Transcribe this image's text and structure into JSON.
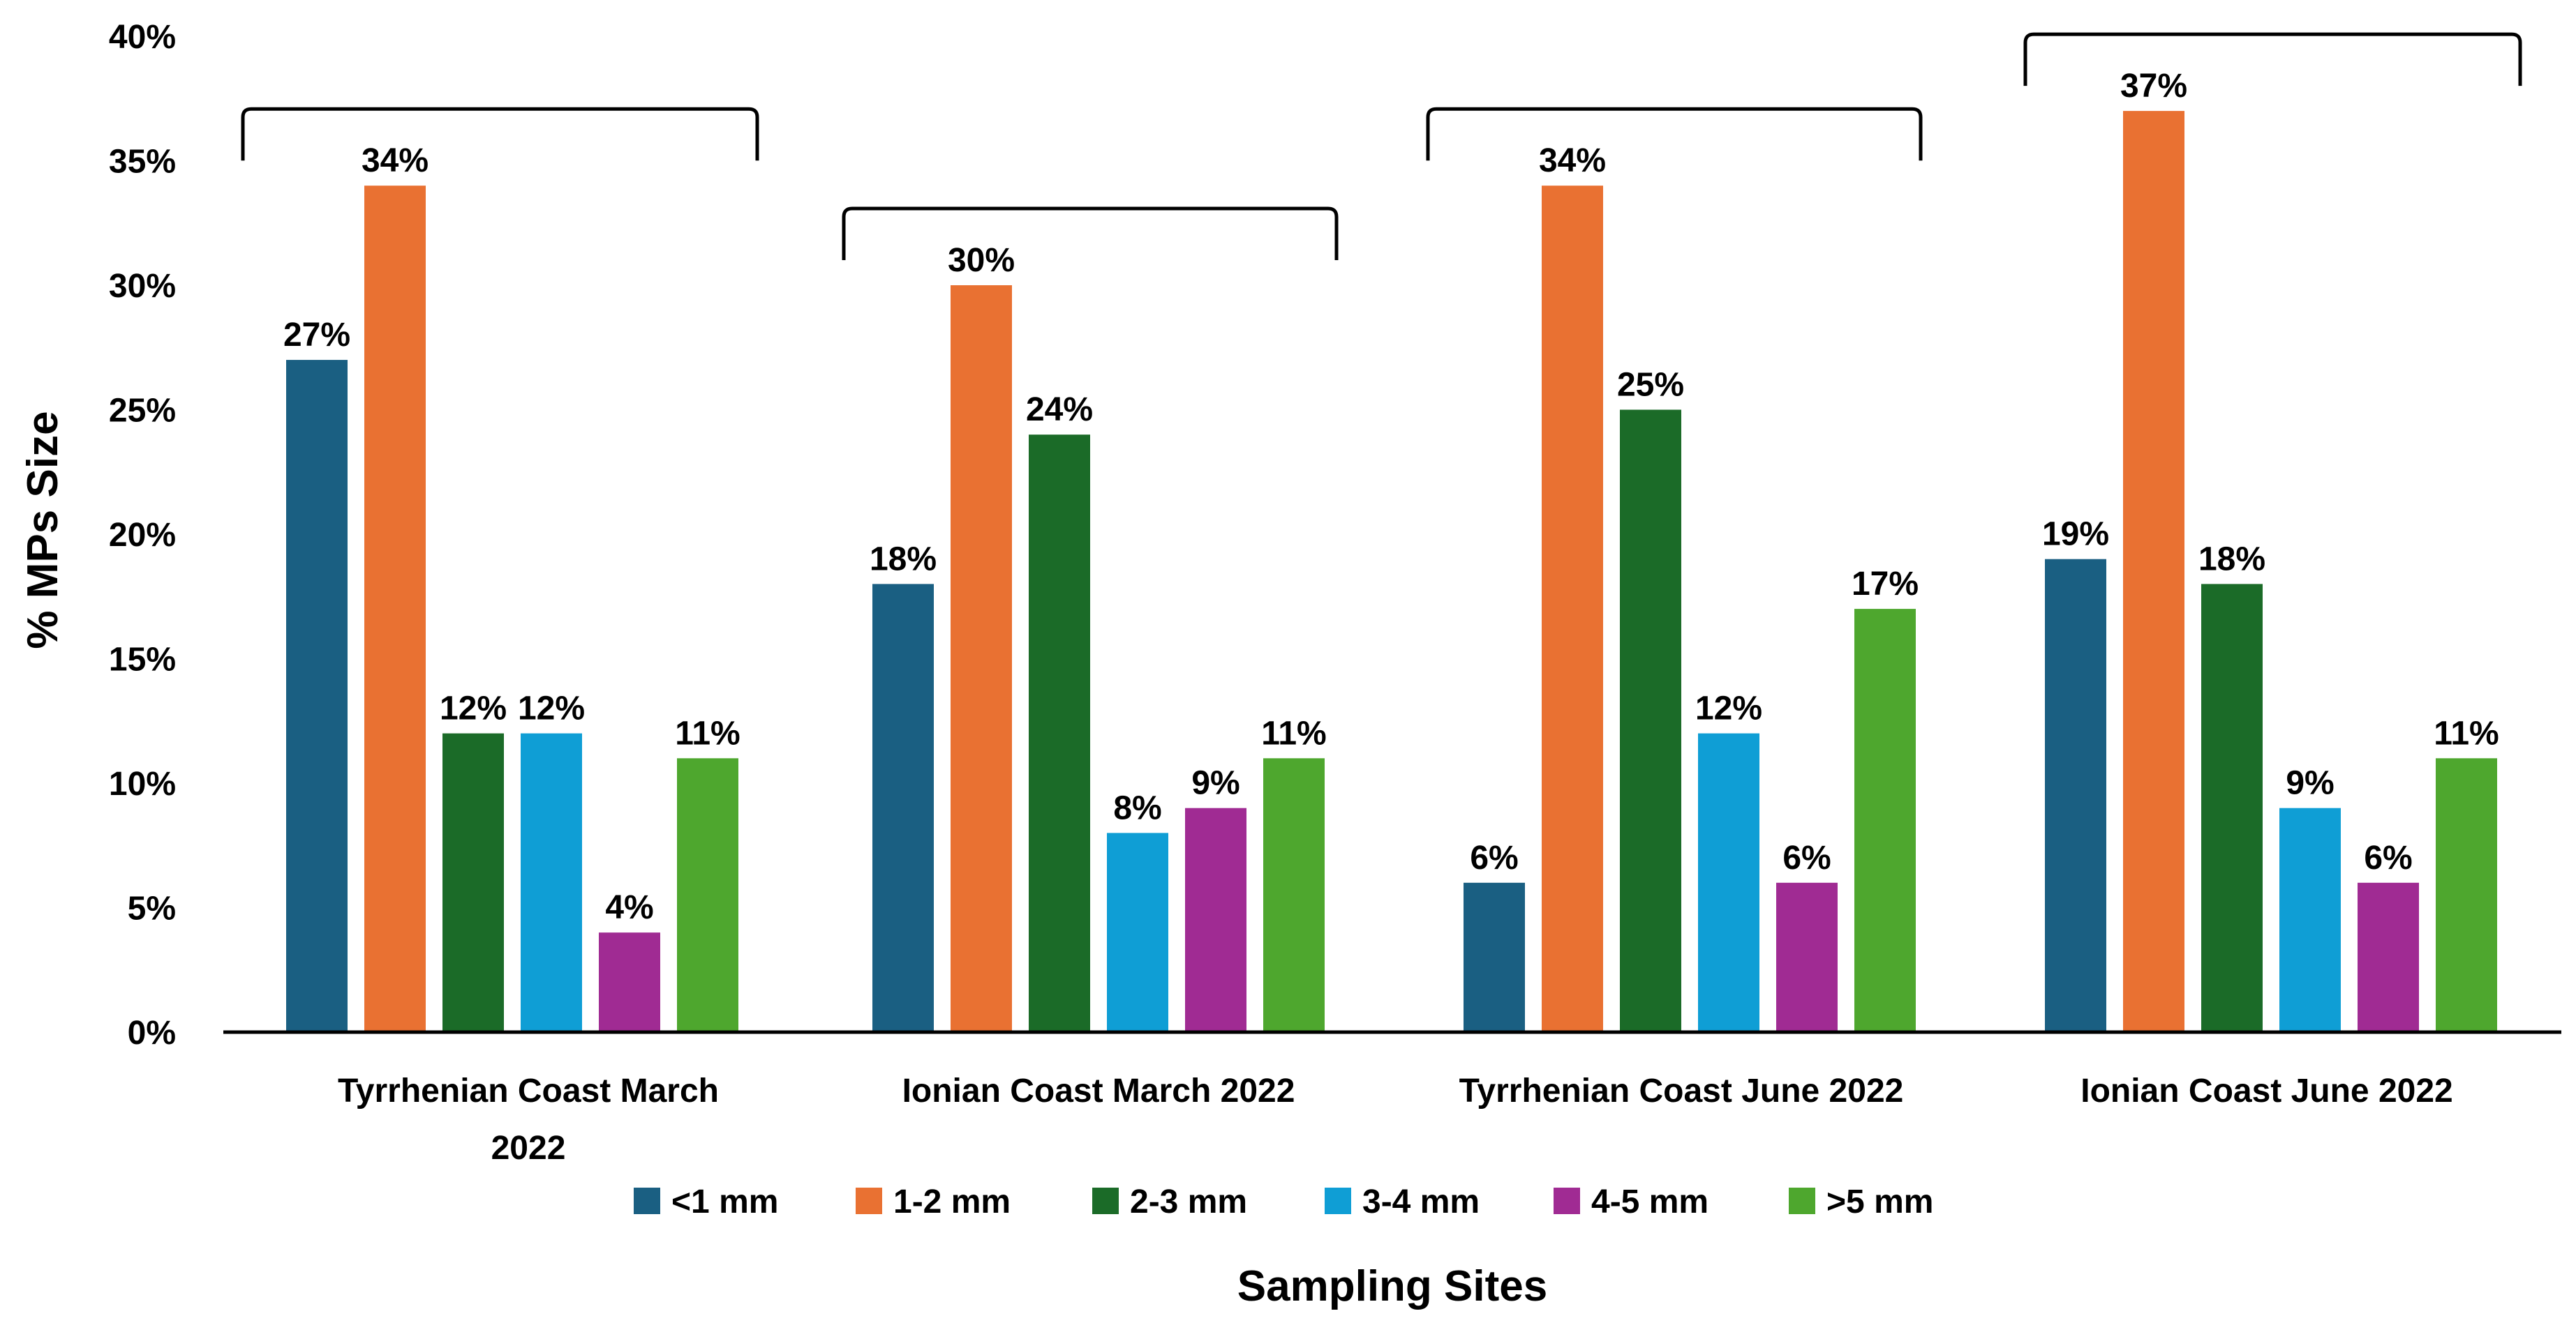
{
  "chart_data": {
    "type": "bar",
    "title": "",
    "xlabel": "Sampling Sites",
    "ylabel": "% MPs Size",
    "ylim": [
      0,
      40
    ],
    "ytick_step": 5,
    "ytick_labels": [
      "0%",
      "5%",
      "10%",
      "15%",
      "20%",
      "25%",
      "30%",
      "35%",
      "40%"
    ],
    "grid": false,
    "legend_position": "bottom",
    "categories": [
      [
        "Tyrrhenian Coast March",
        "2022"
      ],
      [
        "Ionian Coast March 2022"
      ],
      [
        "Tyrrhenian Coast June 2022"
      ],
      [
        "Ionian Coast June 2022"
      ]
    ],
    "series": [
      {
        "name": "<1 mm",
        "color": "#1a5f82",
        "values": [
          27,
          18,
          6,
          19
        ],
        "labels": [
          "27%",
          "18%",
          "6%",
          "19%"
        ]
      },
      {
        "name": "1-2 mm",
        "color": "#e97132",
        "values": [
          34,
          30,
          34,
          37
        ],
        "labels": [
          "34%",
          "30%",
          "34%",
          "37%"
        ]
      },
      {
        "name": "2-3 mm",
        "color": "#1b6b28",
        "values": [
          12,
          24,
          25,
          18
        ],
        "labels": [
          "12%",
          "24%",
          "25%",
          "18%"
        ]
      },
      {
        "name": "3-4 mm",
        "color": "#0f9ed5",
        "values": [
          12,
          8,
          12,
          9
        ],
        "labels": [
          "12%",
          "8%",
          "12%",
          "9%"
        ]
      },
      {
        "name": "4-5 mm",
        "color": "#a02b93",
        "values": [
          4,
          9,
          6,
          6
        ],
        "labels": [
          "4%",
          "9%",
          "6%",
          "6%"
        ]
      },
      {
        "name": ">5 mm",
        "color": "#4ea72e",
        "values": [
          11,
          11,
          17,
          11
        ],
        "labels": [
          "11%",
          "11%",
          "17%",
          "11%"
        ]
      }
    ]
  }
}
